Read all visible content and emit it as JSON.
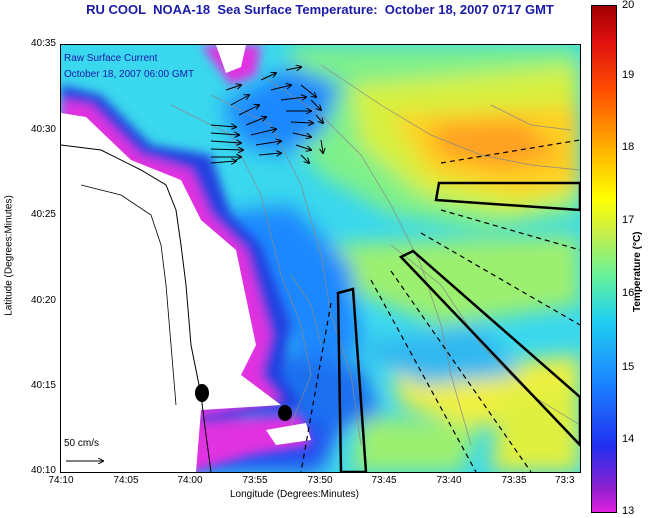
{
  "title": "RU COOL  NOAA-18  Sea Surface Temperature:  October 18, 2007 0717 GMT",
  "legend_lines": [
    "Raw Surface Current",
    "October 18, 2007 06:00 GMT"
  ],
  "scale_label": "50 cm/s",
  "axes": {
    "xlabel": "Longitude (Degrees:Minutes)",
    "ylabel": "Latitude (Degrees:Minutes)",
    "xticks": [
      "74:10",
      "74:05",
      "74:00",
      "73:55",
      "73:50",
      "73:45",
      "73:40",
      "73:35",
      "73:3"
    ],
    "yticks": [
      "40:35",
      "40:30",
      "40:25",
      "40:20",
      "40:15",
      "40:10"
    ]
  },
  "colorbar": {
    "label": "Temperature (°C)",
    "ticks": [
      "20",
      "19",
      "18",
      "17",
      "16",
      "15",
      "14",
      "13"
    ],
    "colors": [
      "#a00000",
      "#ff2000",
      "#ff9000",
      "#ffff00",
      "#40f0c0",
      "#1a90ff",
      "#2030f0",
      "#e020e0"
    ]
  }
}
